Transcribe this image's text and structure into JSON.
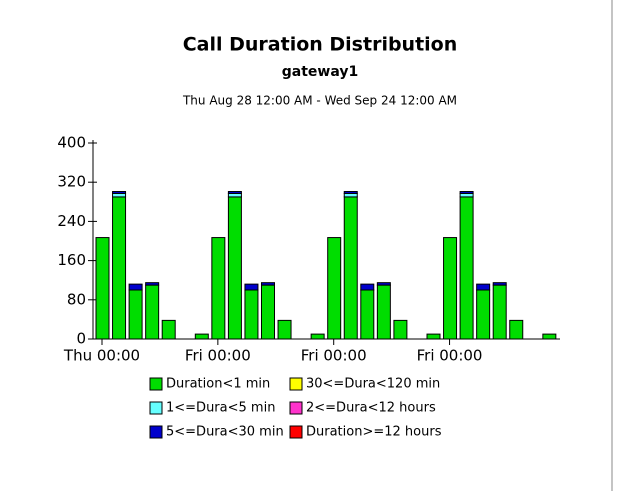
{
  "chart_data": {
    "type": "bar",
    "stacked": true,
    "title": "Call Duration Distribution",
    "subtitle": "gateway1",
    "date_range": "Thu Aug 28 12:00 AM - Wed Sep 24 12:00 AM",
    "categories": [
      "Thu 00:00",
      null,
      null,
      null,
      null,
      null,
      null,
      "Fri 00:00",
      null,
      null,
      null,
      null,
      null,
      null,
      "Fri 00:00",
      null,
      null,
      null,
      null,
      null,
      null,
      "Fri 00:00",
      null,
      null,
      null,
      null,
      null,
      null
    ],
    "series": [
      {
        "name": "Duration<1 min",
        "color": "#00dd00",
        "values": [
          207,
          290,
          100,
          110,
          38,
          0,
          10,
          207,
          290,
          100,
          110,
          38,
          0,
          10,
          207,
          290,
          100,
          110,
          38,
          0,
          10,
          207,
          290,
          100,
          110,
          38,
          0,
          10
        ]
      },
      {
        "name": "1<=Dura<5 min",
        "color": "#66ffff",
        "values": [
          0,
          7,
          0,
          0,
          0,
          0,
          0,
          0,
          7,
          0,
          0,
          0,
          0,
          0,
          0,
          7,
          0,
          0,
          0,
          0,
          0,
          0,
          7,
          0,
          0,
          0,
          0,
          0
        ]
      },
      {
        "name": "5<=Dura<30 min",
        "color": "#0000cc",
        "values": [
          0,
          4,
          12,
          5,
          0,
          0,
          0,
          0,
          4,
          12,
          5,
          0,
          0,
          0,
          0,
          4,
          12,
          5,
          0,
          0,
          0,
          0,
          4,
          12,
          5,
          0,
          0,
          0
        ]
      },
      {
        "name": "30<=Dura<120 min",
        "color": "#ffff00",
        "values": [
          0,
          0,
          0,
          0,
          0,
          0,
          0,
          0,
          0,
          0,
          0,
          0,
          0,
          0,
          0,
          0,
          0,
          0,
          0,
          0,
          0,
          0,
          0,
          0,
          0,
          0,
          0,
          0
        ]
      },
      {
        "name": "2<=Dura<12 hours",
        "color": "#ff33cc",
        "values": [
          0,
          0,
          0,
          0,
          0,
          0,
          0,
          0,
          0,
          0,
          0,
          0,
          0,
          0,
          0,
          0,
          0,
          0,
          0,
          0,
          0,
          0,
          0,
          0,
          0,
          0,
          0,
          0
        ]
      },
      {
        "name": "Duration>=12 hours",
        "color": "#ff0000",
        "values": [
          0,
          0,
          0,
          0,
          0,
          0,
          0,
          0,
          0,
          0,
          0,
          0,
          0,
          0,
          0,
          0,
          0,
          0,
          0,
          0,
          0,
          0,
          0,
          0,
          0,
          0,
          0,
          0
        ]
      }
    ],
    "ylim": [
      0,
      400
    ],
    "yticks": [
      0,
      80,
      160,
      240,
      320,
      400
    ]
  }
}
